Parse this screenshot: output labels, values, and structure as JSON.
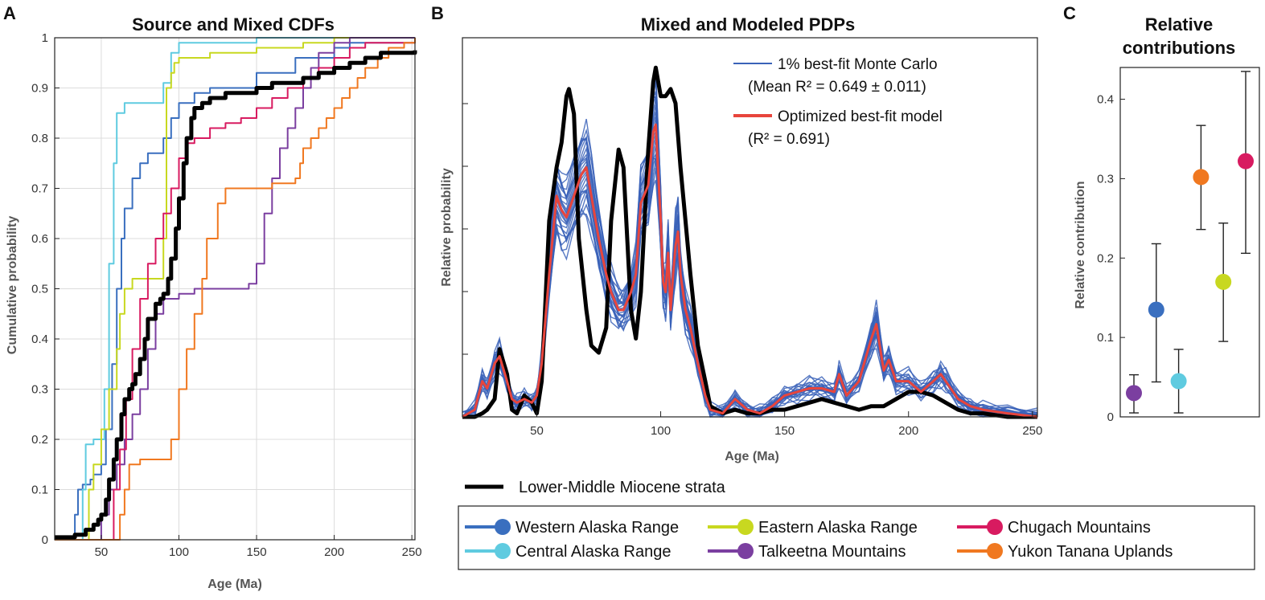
{
  "chart_data": [
    {
      "panel": "A",
      "type": "line",
      "title": "Source and Mixed CDFs",
      "xlabel": "Age (Ma)",
      "ylabel": "Cumulative probability",
      "xlim": [
        20,
        252
      ],
      "ylim": [
        0,
        1
      ],
      "xticks": [
        50,
        100,
        150,
        200,
        250
      ],
      "yticks": [
        0,
        0.1,
        0.2,
        0.3,
        0.4,
        0.5,
        0.6,
        0.7,
        0.8,
        0.9,
        1
      ],
      "grid": true,
      "series": [
        {
          "name": "Western Alaska Range",
          "color": "#3a6fbf",
          "x": [
            20,
            30,
            33,
            35,
            38,
            43,
            45,
            50,
            53,
            57,
            60,
            63,
            65,
            70,
            75,
            80,
            90,
            95,
            100,
            110,
            120,
            150,
            175,
            200,
            210,
            252
          ],
          "y": [
            0,
            0,
            0.05,
            0.1,
            0.11,
            0.12,
            0.13,
            0.15,
            0.22,
            0.35,
            0.5,
            0.6,
            0.66,
            0.72,
            0.75,
            0.77,
            0.8,
            0.84,
            0.87,
            0.89,
            0.9,
            0.93,
            0.96,
            0.98,
            0.99,
            1
          ]
        },
        {
          "name": "Central Alaska Range",
          "color": "#5fcbe0",
          "x": [
            20,
            35,
            38,
            40,
            45,
            48,
            52,
            55,
            58,
            60,
            65,
            70,
            75,
            88,
            90,
            95,
            100,
            150,
            200,
            252
          ],
          "y": [
            0,
            0,
            0.1,
            0.19,
            0.2,
            0.2,
            0.3,
            0.55,
            0.75,
            0.85,
            0.87,
            0.87,
            0.87,
            0.87,
            0.91,
            0.97,
            0.99,
            1,
            1,
            1
          ]
        },
        {
          "name": "Eastern Alaska Range",
          "color": "#c8d820",
          "x": [
            20,
            38,
            42,
            45,
            50,
            55,
            60,
            62,
            65,
            70,
            80,
            85,
            90,
            92,
            95,
            97,
            100,
            105,
            120,
            150,
            170,
            180,
            200,
            252
          ],
          "y": [
            0,
            0,
            0.1,
            0.15,
            0.22,
            0.3,
            0.38,
            0.45,
            0.5,
            0.52,
            0.52,
            0.52,
            0.6,
            0.9,
            0.93,
            0.95,
            0.96,
            0.96,
            0.97,
            0.98,
            0.98,
            0.99,
            1,
            1
          ]
        },
        {
          "name": "Talkeetna Mountains",
          "color": "#7b3fa0",
          "x": [
            20,
            45,
            50,
            55,
            60,
            65,
            70,
            75,
            80,
            85,
            90,
            100,
            110,
            130,
            145,
            150,
            155,
            160,
            165,
            170,
            175,
            180,
            185,
            190,
            200,
            210,
            252
          ],
          "y": [
            0,
            0,
            0.05,
            0.1,
            0.15,
            0.2,
            0.25,
            0.3,
            0.38,
            0.45,
            0.48,
            0.49,
            0.5,
            0.5,
            0.51,
            0.55,
            0.65,
            0.72,
            0.78,
            0.82,
            0.86,
            0.9,
            0.94,
            0.97,
            0.99,
            1,
            1
          ]
        },
        {
          "name": "Chugach Mountains",
          "color": "#d81b60",
          "x": [
            20,
            55,
            58,
            62,
            66,
            70,
            75,
            80,
            85,
            90,
            95,
            100,
            105,
            110,
            120,
            130,
            140,
            150,
            160,
            170,
            180,
            190,
            200,
            210,
            220,
            252
          ],
          "y": [
            0,
            0,
            0.1,
            0.18,
            0.28,
            0.38,
            0.48,
            0.55,
            0.6,
            0.65,
            0.7,
            0.76,
            0.79,
            0.8,
            0.82,
            0.83,
            0.84,
            0.86,
            0.88,
            0.9,
            0.92,
            0.94,
            0.96,
            0.98,
            0.99,
            1
          ]
        },
        {
          "name": "Yukon Tanana Uplands",
          "color": "#f07820",
          "x": [
            20,
            58,
            62,
            65,
            68,
            72,
            75,
            80,
            90,
            95,
            100,
            105,
            110,
            115,
            118,
            125,
            130,
            140,
            150,
            160,
            170,
            175,
            178,
            180,
            185,
            190,
            195,
            200,
            205,
            210,
            215,
            220,
            228,
            235,
            245,
            252
          ],
          "y": [
            0,
            0,
            0.05,
            0.1,
            0.15,
            0.15,
            0.16,
            0.16,
            0.16,
            0.2,
            0.3,
            0.38,
            0.45,
            0.52,
            0.6,
            0.67,
            0.7,
            0.7,
            0.7,
            0.71,
            0.71,
            0.72,
            0.75,
            0.78,
            0.8,
            0.82,
            0.84,
            0.86,
            0.88,
            0.9,
            0.92,
            0.94,
            0.96,
            0.98,
            0.99,
            1
          ]
        },
        {
          "name": "Lower-Middle Miocene strata",
          "color": "#000000",
          "x": [
            20,
            30,
            33,
            35,
            40,
            45,
            48,
            50,
            53,
            55,
            58,
            60,
            63,
            65,
            68,
            70,
            72,
            75,
            78,
            80,
            85,
            88,
            90,
            93,
            95,
            98,
            100,
            103,
            105,
            108,
            110,
            115,
            120,
            130,
            140,
            150,
            160,
            170,
            180,
            190,
            200,
            210,
            220,
            230,
            240,
            252
          ],
          "y": [
            0.005,
            0.005,
            0.01,
            0.01,
            0.02,
            0.03,
            0.04,
            0.05,
            0.08,
            0.12,
            0.16,
            0.2,
            0.25,
            0.28,
            0.3,
            0.31,
            0.33,
            0.36,
            0.4,
            0.44,
            0.47,
            0.48,
            0.49,
            0.52,
            0.56,
            0.62,
            0.68,
            0.75,
            0.8,
            0.84,
            0.86,
            0.87,
            0.88,
            0.89,
            0.89,
            0.9,
            0.91,
            0.91,
            0.92,
            0.93,
            0.94,
            0.95,
            0.96,
            0.97,
            0.97,
            0.975
          ]
        }
      ]
    },
    {
      "panel": "B",
      "type": "line",
      "title": "Mixed and Modeled PDPs",
      "xlabel": "Age (Ma)",
      "ylabel": "Relative probability",
      "xlim": [
        20,
        252
      ],
      "ylim": [
        0,
        1
      ],
      "xticks": [
        50,
        100,
        150,
        200,
        250
      ],
      "legend": [
        {
          "label_line1": "1% best-fit Monte Carlo",
          "label_line2": "(Mean R² = 0.649 ± 0.011)",
          "color": "#3a62b8"
        },
        {
          "label_line1": "Optimized best-fit model",
          "label_line2": "(R² = 0.691)",
          "color": "#e8453c"
        }
      ],
      "series": [
        {
          "name": "Lower-Middle Miocene strata",
          "color": "#000000",
          "x": [
            20,
            25,
            28,
            30,
            33,
            35,
            38,
            40,
            42,
            45,
            48,
            50,
            52,
            55,
            58,
            60,
            62,
            63,
            65,
            67,
            70,
            72,
            75,
            78,
            80,
            83,
            85,
            88,
            90,
            92,
            95,
            97,
            98,
            100,
            102,
            104,
            106,
            108,
            110,
            112,
            115,
            118,
            120,
            125,
            130,
            135,
            140,
            145,
            150,
            155,
            160,
            165,
            170,
            175,
            180,
            185,
            190,
            195,
            200,
            205,
            210,
            215,
            220,
            225,
            230,
            240,
            252
          ],
          "y": [
            0,
            0,
            0.01,
            0.02,
            0.05,
            0.19,
            0.12,
            0.02,
            0.01,
            0.06,
            0.04,
            0.01,
            0.1,
            0.55,
            0.7,
            0.77,
            0.9,
            0.92,
            0.85,
            0.5,
            0.3,
            0.2,
            0.18,
            0.25,
            0.55,
            0.75,
            0.7,
            0.3,
            0.22,
            0.35,
            0.75,
            0.94,
            0.98,
            0.9,
            0.9,
            0.92,
            0.88,
            0.7,
            0.55,
            0.4,
            0.2,
            0.1,
            0.03,
            0.01,
            0.02,
            0.01,
            0.01,
            0.02,
            0.02,
            0.03,
            0.04,
            0.05,
            0.04,
            0.03,
            0.02,
            0.03,
            0.03,
            0.05,
            0.07,
            0.07,
            0.06,
            0.04,
            0.02,
            0.01,
            0.01,
            0.0,
            0.0
          ]
        },
        {
          "name": "Optimized best-fit model",
          "color": "#e8453c",
          "x": [
            20,
            25,
            28,
            30,
            33,
            35,
            38,
            40,
            42,
            45,
            48,
            50,
            52,
            55,
            58,
            60,
            62,
            65,
            68,
            70,
            72,
            75,
            78,
            80,
            83,
            85,
            88,
            90,
            92,
            95,
            97,
            98,
            100,
            101,
            102,
            103,
            104,
            105,
            106,
            107,
            108,
            110,
            112,
            115,
            118,
            120,
            125,
            130,
            135,
            140,
            145,
            150,
            155,
            160,
            165,
            170,
            172,
            175,
            180,
            185,
            187,
            190,
            192,
            195,
            200,
            205,
            210,
            213,
            215,
            220,
            225,
            230,
            240,
            252
          ],
          "y": [
            0,
            0.02,
            0.1,
            0.08,
            0.15,
            0.17,
            0.1,
            0.05,
            0.04,
            0.05,
            0.04,
            0.06,
            0.15,
            0.4,
            0.62,
            0.58,
            0.56,
            0.62,
            0.68,
            0.7,
            0.62,
            0.5,
            0.4,
            0.35,
            0.3,
            0.3,
            0.35,
            0.4,
            0.6,
            0.65,
            0.8,
            0.82,
            0.55,
            0.38,
            0.35,
            0.46,
            0.3,
            0.4,
            0.48,
            0.52,
            0.4,
            0.3,
            0.25,
            0.15,
            0.06,
            0.02,
            0.01,
            0.05,
            0.02,
            0.01,
            0.03,
            0.06,
            0.07,
            0.08,
            0.08,
            0.07,
            0.12,
            0.06,
            0.1,
            0.22,
            0.26,
            0.13,
            0.16,
            0.1,
            0.1,
            0.07,
            0.1,
            0.12,
            0.1,
            0.05,
            0.03,
            0.02,
            0.01,
            0.0
          ]
        }
      ]
    },
    {
      "panel": "C",
      "type": "scatter",
      "title_line1": "Relative",
      "title_line2": "contributions",
      "ylabel": "Relative contribution",
      "ylim": [
        0,
        0.44
      ],
      "yticks": [
        0,
        0.1,
        0.2,
        0.3,
        0.4
      ],
      "points": [
        {
          "name": "Talkeetna Mountains",
          "color": "#7b3fa0",
          "value": 0.03,
          "lower": 0.005,
          "upper": 0.053
        },
        {
          "name": "Western Alaska Range",
          "color": "#3a6fbf",
          "value": 0.135,
          "lower": 0.044,
          "upper": 0.218
        },
        {
          "name": "Central Alaska Range",
          "color": "#5fcbe0",
          "value": 0.045,
          "lower": 0.005,
          "upper": 0.085
        },
        {
          "name": "Yukon Tanana Uplands",
          "color": "#f07820",
          "value": 0.302,
          "lower": 0.236,
          "upper": 0.367
        },
        {
          "name": "Eastern Alaska Range",
          "color": "#c8d820",
          "value": 0.17,
          "lower": 0.095,
          "upper": 0.244
        },
        {
          "name": "Chugach Mountains",
          "color": "#d81b60",
          "value": 0.322,
          "lower": 0.206,
          "upper": 0.435
        }
      ]
    }
  ],
  "panel_labels": {
    "a": "A",
    "b": "B",
    "c": "C"
  },
  "legend": {
    "strata_label": "Lower-Middle Miocene strata",
    "strata_color": "#000000",
    "items": [
      {
        "label": "Western Alaska Range",
        "color": "#3a6fbf"
      },
      {
        "label": "Eastern Alaska Range",
        "color": "#c8d820"
      },
      {
        "label": "Chugach Mountains",
        "color": "#d81b60"
      },
      {
        "label": "Central Alaska Range",
        "color": "#5fcbe0"
      },
      {
        "label": "Talkeetna Mountains",
        "color": "#7b3fa0"
      },
      {
        "label": "Yukon Tanana Uplands",
        "color": "#f07820"
      }
    ]
  }
}
